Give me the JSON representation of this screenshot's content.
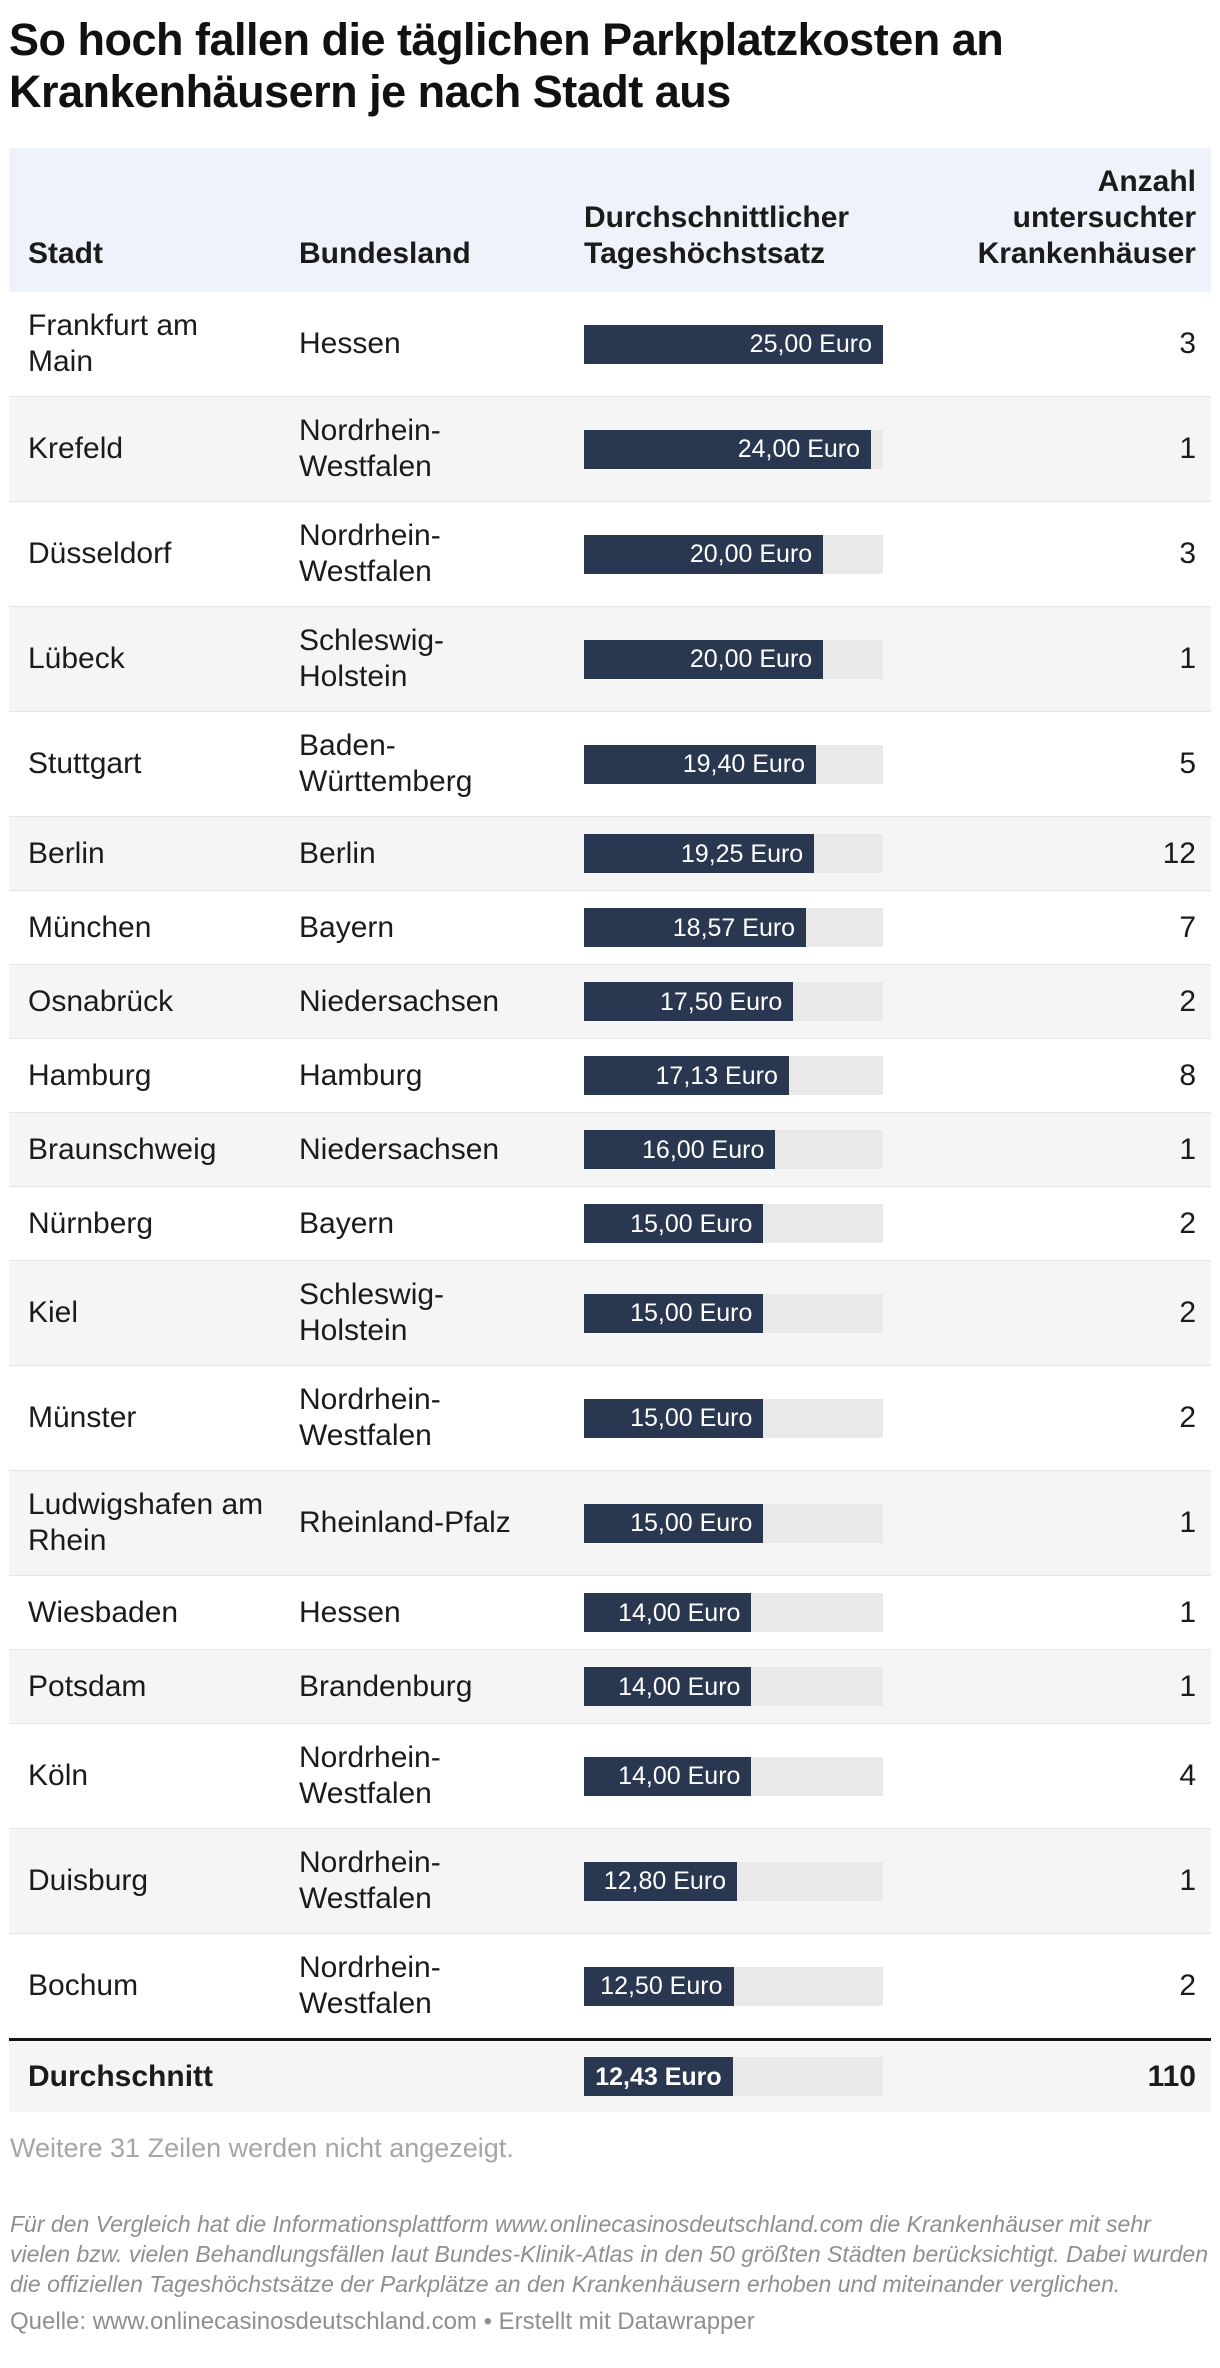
{
  "colors": {
    "bar": "#2a3750",
    "header_background": "#edf2fb",
    "zebra_row": "#f5f5f5",
    "bar_track": "#e9e9e9",
    "summary_rule": "#141414",
    "muted_text": "#8f8f8f"
  },
  "title": "So hoch fallen die täglichen Parkplatzkosten an Krankenhäusern je nach Stadt aus",
  "table": {
    "header": {
      "city": "Stadt",
      "state": "Bundesland",
      "rate": "Durchschnittlicher Tageshöchstsatz",
      "count": "Anzahl untersuchter Krankenhäuser"
    },
    "bar_max_euro": 25,
    "rows": [
      {
        "city": "Frankfurt am Main",
        "state": "Hessen",
        "rate_label": "25,00 Euro",
        "rate_value": 25.0,
        "count": "3"
      },
      {
        "city": "Krefeld",
        "state": "Nordrhein-Westfalen",
        "rate_label": "24,00 Euro",
        "rate_value": 24.0,
        "count": "1"
      },
      {
        "city": "Düsseldorf",
        "state": "Nordrhein-Westfalen",
        "rate_label": "20,00 Euro",
        "rate_value": 20.0,
        "count": "3"
      },
      {
        "city": "Lübeck",
        "state": "Schleswig-Holstein",
        "rate_label": "20,00 Euro",
        "rate_value": 20.0,
        "count": "1"
      },
      {
        "city": "Stuttgart",
        "state": "Baden-Württemberg",
        "rate_label": "19,40 Euro",
        "rate_value": 19.4,
        "count": "5"
      },
      {
        "city": "Berlin",
        "state": "Berlin",
        "rate_label": "19,25 Euro",
        "rate_value": 19.25,
        "count": "12"
      },
      {
        "city": "München",
        "state": "Bayern",
        "rate_label": "18,57 Euro",
        "rate_value": 18.57,
        "count": "7"
      },
      {
        "city": "Osnabrück",
        "state": "Niedersachsen",
        "rate_label": "17,50 Euro",
        "rate_value": 17.5,
        "count": "2"
      },
      {
        "city": "Hamburg",
        "state": "Hamburg",
        "rate_label": "17,13 Euro",
        "rate_value": 17.13,
        "count": "8"
      },
      {
        "city": "Braunschweig",
        "state": "Niedersachsen",
        "rate_label": "16,00 Euro",
        "rate_value": 16.0,
        "count": "1"
      },
      {
        "city": "Nürnberg",
        "state": "Bayern",
        "rate_label": "15,00 Euro",
        "rate_value": 15.0,
        "count": "2"
      },
      {
        "city": "Kiel",
        "state": "Schleswig-Holstein",
        "rate_label": "15,00 Euro",
        "rate_value": 15.0,
        "count": "2"
      },
      {
        "city": "Münster",
        "state": "Nordrhein-Westfalen",
        "rate_label": "15,00 Euro",
        "rate_value": 15.0,
        "count": "2"
      },
      {
        "city": "Ludwigshafen am Rhein",
        "state": "Rheinland-Pfalz",
        "rate_label": "15,00 Euro",
        "rate_value": 15.0,
        "count": "1"
      },
      {
        "city": "Wiesbaden",
        "state": "Hessen",
        "rate_label": "14,00 Euro",
        "rate_value": 14.0,
        "count": "1"
      },
      {
        "city": "Potsdam",
        "state": "Brandenburg",
        "rate_label": "14,00 Euro",
        "rate_value": 14.0,
        "count": "1"
      },
      {
        "city": "Köln",
        "state": "Nordrhein-Westfalen",
        "rate_label": "14,00 Euro",
        "rate_value": 14.0,
        "count": "4"
      },
      {
        "city": "Duisburg",
        "state": "Nordrhein-Westfalen",
        "rate_label": "12,80 Euro",
        "rate_value": 12.8,
        "count": "1"
      },
      {
        "city": "Bochum",
        "state": "Nordrhein-Westfalen",
        "rate_label": "12,50 Euro",
        "rate_value": 12.5,
        "count": "2"
      }
    ],
    "summary": {
      "city": "Durchschnitt",
      "state": "",
      "rate_label": "12,43 Euro",
      "rate_value": 12.43,
      "count": "110"
    }
  },
  "notes": {
    "hidden_rows": "Weitere 31 Zeilen werden nicht angezeigt.",
    "description": "Für den Vergleich hat die Informationsplattform www.onlinecasinosdeutschland.com die Krankenhäuser mit sehr vielen bzw. vielen Behandlungsfällen laut Bundes-Klinik-Atlas in den 50 größten Städten berücksichtigt. Dabei wurden die offiziellen Tageshöchstsätze der Parkplätze an den Krankenhäusern erhoben und miteinander verglichen.",
    "source": "Quelle: www.onlinecasinosdeutschland.com • Erstellt mit Datawrapper"
  },
  "chart_data": {
    "type": "table",
    "title": "So hoch fallen die täglichen Parkplatzkosten an Krankenhäusern je nach Stadt aus",
    "columns": [
      "Stadt",
      "Bundesland",
      "Durchschnittlicher Tageshöchstsatz",
      "Anzahl untersuchter Krankenhäuser"
    ],
    "bar_axis_max_euro": 25,
    "rows": [
      [
        "Frankfurt am Main",
        "Hessen",
        25.0,
        3
      ],
      [
        "Krefeld",
        "Nordrhein-Westfalen",
        24.0,
        1
      ],
      [
        "Düsseldorf",
        "Nordrhein-Westfalen",
        20.0,
        3
      ],
      [
        "Lübeck",
        "Schleswig-Holstein",
        20.0,
        1
      ],
      [
        "Stuttgart",
        "Baden-Württemberg",
        19.4,
        5
      ],
      [
        "Berlin",
        "Berlin",
        19.25,
        12
      ],
      [
        "München",
        "Bayern",
        18.57,
        7
      ],
      [
        "Osnabrück",
        "Niedersachsen",
        17.5,
        2
      ],
      [
        "Hamburg",
        "Hamburg",
        17.13,
        8
      ],
      [
        "Braunschweig",
        "Niedersachsen",
        16.0,
        1
      ],
      [
        "Nürnberg",
        "Bayern",
        15.0,
        2
      ],
      [
        "Kiel",
        "Schleswig-Holstein",
        15.0,
        2
      ],
      [
        "Münster",
        "Nordrhein-Westfalen",
        15.0,
        2
      ],
      [
        "Ludwigshafen am Rhein",
        "Rheinland-Pfalz",
        15.0,
        1
      ],
      [
        "Wiesbaden",
        "Hessen",
        14.0,
        1
      ],
      [
        "Potsdam",
        "Brandenburg",
        14.0,
        1
      ],
      [
        "Köln",
        "Nordrhein-Westfalen",
        14.0,
        4
      ],
      [
        "Duisburg",
        "Nordrhein-Westfalen",
        12.8,
        1
      ],
      [
        "Bochum",
        "Nordrhein-Westfalen",
        12.5,
        2
      ],
      [
        "Durchschnitt",
        "",
        12.43,
        110
      ]
    ]
  }
}
